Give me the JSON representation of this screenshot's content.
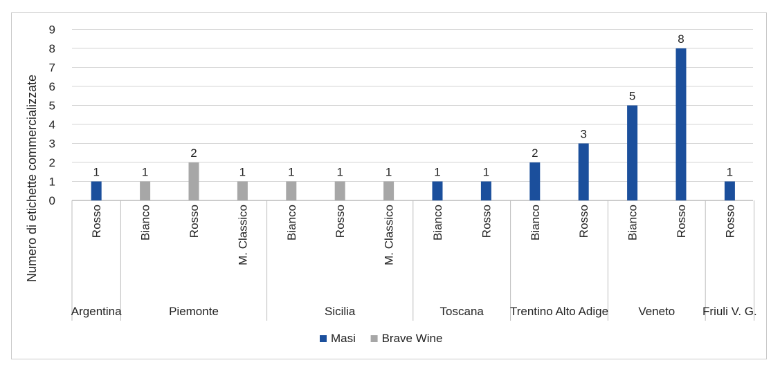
{
  "chart_data": {
    "type": "bar",
    "title": "",
    "xlabel": "",
    "ylabel": "Numero di etichette commercializzate",
    "ylim": [
      0,
      9
    ],
    "yticks": [
      "0",
      "1",
      "2",
      "3",
      "4",
      "5",
      "6",
      "7",
      "8",
      "9"
    ],
    "grid": true,
    "legend_position": "bottom",
    "colors": {
      "Masi": "#1b4f9c",
      "Brave Wine": "#a7a7a7"
    },
    "groups": [
      "Argentina",
      "Piemonte",
      "Sicilia",
      "Toscana",
      "Trentino Alto Adige",
      "Veneto",
      "Friuli V. G."
    ],
    "categories": [
      {
        "region": "Argentina",
        "label": "Rosso",
        "series": "Masi",
        "value": 1
      },
      {
        "region": "Piemonte",
        "label": "Bianco",
        "series": "Brave Wine",
        "value": 1
      },
      {
        "region": "Piemonte",
        "label": "Rosso",
        "series": "Brave Wine",
        "value": 2
      },
      {
        "region": "Piemonte",
        "label": "M. Classico",
        "series": "Brave Wine",
        "value": 1
      },
      {
        "region": "Sicilia",
        "label": "Bianco",
        "series": "Brave Wine",
        "value": 1
      },
      {
        "region": "Sicilia",
        "label": "Rosso",
        "series": "Brave Wine",
        "value": 1
      },
      {
        "region": "Sicilia",
        "label": "M. Classico",
        "series": "Brave Wine",
        "value": 1
      },
      {
        "region": "Toscana",
        "label": "Bianco",
        "series": "Masi",
        "value": 1
      },
      {
        "region": "Toscana",
        "label": "Rosso",
        "series": "Masi",
        "value": 1
      },
      {
        "region": "Trentino Alto Adige",
        "label": "Bianco",
        "series": "Masi",
        "value": 2
      },
      {
        "region": "Trentino Alto Adige",
        "label": "Rosso",
        "series": "Masi",
        "value": 3
      },
      {
        "region": "Veneto",
        "label": "Bianco",
        "series": "Masi",
        "value": 5
      },
      {
        "region": "Veneto",
        "label": "Rosso",
        "series": "Masi",
        "value": 8
      },
      {
        "region": "Friuli V. G.",
        "label": "Rosso",
        "series": "Masi",
        "value": 1
      }
    ],
    "legend": [
      "Masi",
      "Brave Wine"
    ]
  }
}
